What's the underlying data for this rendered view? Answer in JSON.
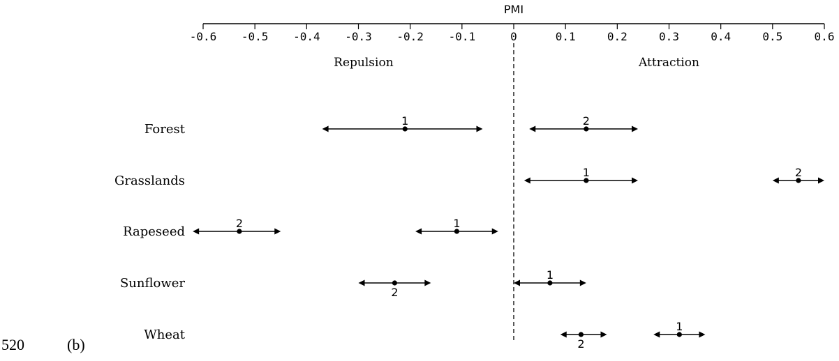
{
  "chart_data": {
    "type": "interval",
    "xlabel": "PMI",
    "xlim": [
      -0.6,
      0.6
    ],
    "xticks": [
      "-0.6",
      "-0.5",
      "-0.4",
      "-0.3",
      "-0.2",
      "-0.1",
      "0",
      "0.1",
      "0.2",
      "0.3",
      "0.4",
      "0.5",
      "0.6"
    ],
    "region_labels": {
      "negative": "Repulsion",
      "positive": "Attraction"
    },
    "categories": [
      "Forest",
      "Grasslands",
      "Rapeseed",
      "Sunflower",
      "Wheat"
    ],
    "intervals": [
      {
        "category": "Forest",
        "label": "1",
        "mean": -0.21,
        "low": -0.37,
        "high": -0.06,
        "label_pos": "above"
      },
      {
        "category": "Forest",
        "label": "2",
        "mean": 0.14,
        "low": 0.03,
        "high": 0.24,
        "label_pos": "above"
      },
      {
        "category": "Grasslands",
        "label": "1",
        "mean": 0.14,
        "low": 0.02,
        "high": 0.24,
        "label_pos": "above"
      },
      {
        "category": "Grasslands",
        "label": "2",
        "mean": 0.55,
        "low": 0.5,
        "high": 0.6,
        "label_pos": "above"
      },
      {
        "category": "Rapeseed",
        "label": "2",
        "mean": -0.53,
        "low": -0.62,
        "high": -0.45,
        "label_pos": "above"
      },
      {
        "category": "Rapeseed",
        "label": "1",
        "mean": -0.11,
        "low": -0.19,
        "high": -0.03,
        "label_pos": "above"
      },
      {
        "category": "Sunflower",
        "label": "2",
        "mean": -0.23,
        "low": -0.3,
        "high": -0.16,
        "label_pos": "below"
      },
      {
        "category": "Sunflower",
        "label": "1",
        "mean": 0.07,
        "low": 0.0,
        "high": 0.14,
        "label_pos": "above"
      },
      {
        "category": "Wheat",
        "label": "2",
        "mean": 0.13,
        "low": 0.09,
        "high": 0.18,
        "label_pos": "below"
      },
      {
        "category": "Wheat",
        "label": "1",
        "mean": 0.32,
        "low": 0.27,
        "high": 0.37,
        "label_pos": "above"
      }
    ],
    "reference_line": 0
  },
  "footer": {
    "line_number": "520",
    "panel_label": "(b)"
  }
}
